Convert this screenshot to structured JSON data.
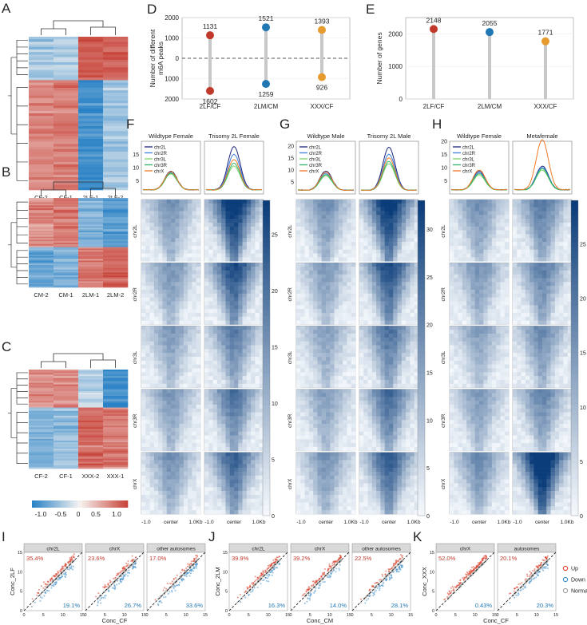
{
  "panel_letters": [
    "A",
    "B",
    "C",
    "D",
    "E",
    "F",
    "G",
    "H",
    "I",
    "J",
    "K"
  ],
  "heatmaps": {
    "A": {
      "columns": [
        "CF-2",
        "CF-1",
        "2LF-1",
        "2LF-2"
      ]
    },
    "B": {
      "columns": [
        "CM-2",
        "CM-1",
        "2LM-1",
        "2LM-2"
      ]
    },
    "C": {
      "columns": [
        "CF-2",
        "CF-1",
        "XXX-2",
        "XXX-1"
      ]
    },
    "colorbar_ticks": [
      "-1.0",
      "-0.5",
      "0",
      "0.5",
      "1.0"
    ],
    "colors": {
      "low": "#2b83c6",
      "mid": "#f7f4f2",
      "high": "#c8453b"
    }
  },
  "chart_data": [
    {
      "id": "D",
      "type": "lollipop",
      "ylabel": "Number of different m6A peaks",
      "categories": [
        "2LF/CF",
        "2LM/CM",
        "XXX/CF"
      ],
      "up": [
        1131,
        1521,
        1393
      ],
      "down": [
        1602,
        1259,
        926
      ],
      "yticks": [
        "2000",
        "1000",
        "0",
        "1000",
        "2000"
      ],
      "ylim": [
        -2000,
        2000
      ],
      "colors": [
        "#c0392b",
        "#1f77b4",
        "#e69b2e"
      ]
    },
    {
      "id": "E",
      "type": "lollipop",
      "ylabel": "Number of genes",
      "categories": [
        "2LF/CF",
        "2LM/CM",
        "XXX/CF"
      ],
      "values": [
        2148,
        2055,
        1771
      ],
      "yticks": [
        "0",
        "1000",
        "2000"
      ],
      "ylim": [
        0,
        2500
      ],
      "colors": [
        "#c0392b",
        "#1f77b4",
        "#e69b2e"
      ]
    },
    {
      "id": "F",
      "type": "profile_heatmap",
      "columns": [
        "Wildtype Female",
        "Trisomy 2L Female"
      ],
      "series": [
        {
          "name": "chr2L",
          "peaks": [
            9,
            18.5
          ]
        },
        {
          "name": "chr2R",
          "peaks": [
            8.5,
            15.5
          ]
        },
        {
          "name": "chr3L",
          "peaks": [
            8,
            11
          ]
        },
        {
          "name": "chr3R",
          "peaks": [
            8.3,
            12
          ]
        },
        {
          "name": "chrX",
          "peaks": [
            8.8,
            13.5
          ]
        }
      ],
      "profile_yticks": [
        "5",
        "10",
        "15"
      ],
      "rows": [
        "chr2L",
        "chr2R",
        "chr3L",
        "chr3R",
        "chrX"
      ],
      "xticks": [
        "-1.0",
        "center",
        "1.0Kb"
      ],
      "colorbar_ticks": [
        "0",
        "5",
        "10",
        "15",
        "20",
        "25"
      ],
      "colorbar_max": 28
    },
    {
      "id": "G",
      "type": "profile_heatmap",
      "columns": [
        "Wildtype Male",
        "Trisomy 2L Male"
      ],
      "series": [
        {
          "name": "chr2L",
          "peaks": [
            10,
            20
          ]
        },
        {
          "name": "chr2R",
          "peaks": [
            9,
            17
          ]
        },
        {
          "name": "chr3L",
          "peaks": [
            8,
            13
          ]
        },
        {
          "name": "chr3R",
          "peaks": [
            8.5,
            14
          ]
        },
        {
          "name": "chrX",
          "peaks": [
            9.5,
            15.5
          ]
        }
      ],
      "profile_yticks": [
        "5",
        "10",
        "15",
        "20"
      ],
      "rows": [
        "chr2L",
        "chr2R",
        "chr3L",
        "chr3R",
        "chrX"
      ],
      "xticks": [
        "-1.0",
        "center",
        "1.0Kb"
      ],
      "colorbar_ticks": [
        "0",
        "5",
        "10",
        "15",
        "20",
        "25",
        "30"
      ],
      "colorbar_max": 33
    },
    {
      "id": "H",
      "type": "profile_heatmap",
      "columns": [
        "Wildtype Female",
        "Metafemale"
      ],
      "series": [
        {
          "name": "chr2L",
          "peaks": [
            9,
            11
          ]
        },
        {
          "name": "chr2R",
          "peaks": [
            8.5,
            10.5
          ]
        },
        {
          "name": "chr3L",
          "peaks": [
            7.5,
            9.5
          ]
        },
        {
          "name": "chr3R",
          "peaks": [
            8,
            10
          ]
        },
        {
          "name": "chrX",
          "peaks": [
            9.5,
            21
          ]
        }
      ],
      "profile_yticks": [
        "5",
        "10",
        "15",
        "20"
      ],
      "rows": [
        "chr2L",
        "chr2R",
        "chr3L",
        "chr3R",
        "chrX"
      ],
      "xticks": [
        "-1.0",
        "center",
        "1.0Kb"
      ],
      "colorbar_ticks": [
        "0",
        "5",
        "10",
        "15",
        "20",
        "25"
      ],
      "colorbar_max": 29
    },
    {
      "id": "I",
      "type": "scatter",
      "ylabel": "Conc_2LF",
      "xlabel": "Conc_CF",
      "facets": [
        {
          "label": "chr2L",
          "up": "35.4%",
          "down": "19.1%"
        },
        {
          "label": "chrX",
          "up": "23.6%",
          "down": "26.7%"
        },
        {
          "label": "other autosomes",
          "up": "17.0%",
          "down": "33.6%"
        }
      ],
      "ticks": [
        "0",
        "5",
        "10",
        "15"
      ],
      "xlim": [
        0,
        15
      ],
      "ylim": [
        0,
        15
      ]
    },
    {
      "id": "J",
      "type": "scatter",
      "ylabel": "Conc_2LM",
      "xlabel": "Conc_CM",
      "facets": [
        {
          "label": "chr2L",
          "up": "39.9%",
          "down": "16.3%"
        },
        {
          "label": "chrX",
          "up": "39.2%",
          "down": "14.0%"
        },
        {
          "label": "other autosomes",
          "up": "22.5%",
          "down": "28.1%"
        }
      ],
      "ticks": [
        "0",
        "5",
        "10",
        "15"
      ],
      "xlim": [
        0,
        15
      ],
      "ylim": [
        0,
        15
      ]
    },
    {
      "id": "K",
      "type": "scatter",
      "ylabel": "Conc_XXX",
      "xlabel": "Conc_CF",
      "facets": [
        {
          "label": "chrX",
          "up": "52.0%",
          "down": "0.43%"
        },
        {
          "label": "autosomes",
          "up": "20.1%",
          "down": "20.3%"
        }
      ],
      "ticks": [
        "0",
        "5",
        "10",
        "15"
      ],
      "xlim": [
        0,
        15
      ],
      "ylim": [
        0,
        15
      ],
      "legend": [
        {
          "label": "Up",
          "color": "#d9412b"
        },
        {
          "label": "Down",
          "color": "#3a8cc8"
        },
        {
          "label": "Normal",
          "color": "#9a9a9a"
        }
      ]
    }
  ],
  "line_colors": {
    "chr2L": "#1a237e",
    "chr2R": "#3f7fe0",
    "chr3L": "#7fd36a",
    "chr3R": "#2fb56a",
    "chrX": "#f07a26"
  },
  "scatter_colors": {
    "up": "#d9412b",
    "down": "#3a8cc8",
    "normal": "#9a9a9a",
    "up_text": "#c0392b",
    "down_text": "#1f77b4"
  }
}
